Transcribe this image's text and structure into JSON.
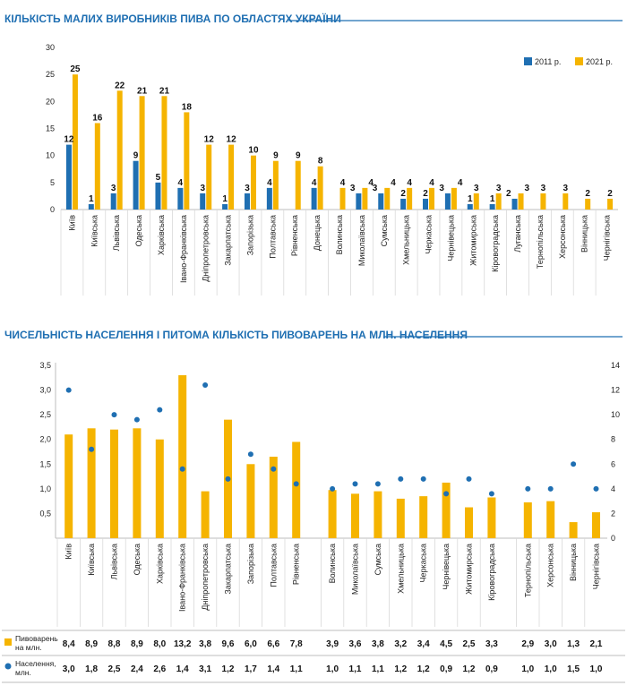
{
  "chart_data": [
    {
      "type": "bar",
      "title": "КІЛЬКІСТЬ МАЛИХ ВИРОБНИКІВ ПИВА ПО ОБЛАСТЯХ УКРАЇНИ",
      "ylim": [
        0,
        30
      ],
      "yticks": [
        0,
        5,
        10,
        15,
        20,
        25,
        30
      ],
      "legend_position": "top-right",
      "categories": [
        "Київ",
        "Київська",
        "Львівська",
        "Одеська",
        "Харківська",
        "Івано-Франківська",
        "Дніпропетровська",
        "Закарпатська",
        "Запорізька",
        "Полтавська",
        "Рівненська",
        "Донецька",
        "Волинська",
        "Миколаївська",
        "Сумська",
        "Хмельницька",
        "Черкаська",
        "Чернівецька",
        "Житомирська",
        "Кіровоградська",
        "Луганська",
        "Тернопільська",
        "Херсонська",
        "Вінницька",
        "Чернігівська"
      ],
      "series": [
        {
          "name": "2011 р.",
          "color": "#1f6fb2",
          "values": [
            12,
            1,
            3,
            9,
            5,
            4,
            3,
            1,
            3,
            4,
            null,
            4,
            null,
            3,
            3,
            2,
            2,
            3,
            1,
            1,
            2,
            null,
            null,
            null,
            null
          ]
        },
        {
          "name": "2021 р.",
          "color": "#f5b400",
          "values": [
            25,
            16,
            22,
            21,
            21,
            18,
            12,
            12,
            10,
            9,
            9,
            8,
            4,
            4,
            4,
            4,
            4,
            4,
            3,
            3,
            3,
            3,
            3,
            2,
            2
          ]
        }
      ]
    },
    {
      "type": "bar",
      "title": "ЧИСЕЛЬНІСТЬ НАСЕЛЕННЯ І ПИТОМА КІЛЬКІСТЬ ПИВОВАРЕНЬ НА МЛН. НАСЕЛЕННЯ",
      "ylim_left": [
        0,
        3.5
      ],
      "yticks_left": [
        "0",
        "0,5",
        "1,0",
        "1,5",
        "2,0",
        "2,5",
        "3,0",
        "3,5"
      ],
      "ylim_right": [
        0,
        14
      ],
      "yticks_right": [
        "0",
        "2",
        "4",
        "6",
        "8",
        "10",
        "12",
        "14"
      ],
      "categories": [
        "Київ",
        "Київська",
        "Львівська",
        "Одеська",
        "Харківська",
        "Івано-Франківська",
        "Дніпропетровська",
        "Закарпатська",
        "Запорізька",
        "Полтавська",
        "Рівненська",
        "Волинська",
        "Миколаївська",
        "Сумська",
        "Хмельницька",
        "Черкаська",
        "Чернівецька",
        "Житомирська",
        "Кіровоградська",
        "Тернопільська",
        "Херсонська",
        "Вінницька",
        "Чернігівська"
      ],
      "groups": [
        11,
        8,
        4
      ],
      "series": [
        {
          "name": "Пивоварень на млн.",
          "color": "#f5b400",
          "axis": "right",
          "values": [
            8.4,
            8.9,
            8.8,
            8.9,
            8.0,
            13.2,
            3.8,
            9.6,
            6.0,
            6.6,
            7.8,
            3.9,
            3.6,
            3.8,
            3.2,
            3.4,
            4.5,
            2.5,
            3.3,
            2.9,
            3.0,
            1.3,
            2.1
          ],
          "labels": [
            "8,4",
            "8,9",
            "8,8",
            "8,9",
            "8,0",
            "13,2",
            "3,8",
            "9,6",
            "6,0",
            "6,6",
            "7,8",
            "3,9",
            "3,6",
            "3,8",
            "3,2",
            "3,4",
            "4,5",
            "2,5",
            "3,3",
            "2,9",
            "3,0",
            "1,3",
            "2,1"
          ]
        },
        {
          "name": "Населення, млн.",
          "color": "#1f6fb2",
          "axis": "left",
          "values": [
            3.0,
            1.8,
            2.5,
            2.4,
            2.6,
            1.4,
            3.1,
            1.2,
            1.7,
            1.4,
            1.1,
            1.0,
            1.1,
            1.1,
            1.2,
            1.2,
            0.9,
            1.2,
            0.9,
            1.0,
            1.0,
            1.5,
            1.0
          ],
          "labels": [
            "3,0",
            "1,8",
            "2,5",
            "2,4",
            "2,6",
            "1,4",
            "3,1",
            "1,2",
            "1,7",
            "1,4",
            "1,1",
            "1,0",
            "1,1",
            "1,1",
            "1,2",
            "1,2",
            "0,9",
            "1,2",
            "0,9",
            "1,0",
            "1,0",
            "1,5",
            "1,0"
          ]
        }
      ],
      "table_rows": [
        {
          "label_lines": [
            "Пивоварень",
            "на млн."
          ]
        },
        {
          "label_lines": [
            "Населення,",
            "млн."
          ]
        }
      ]
    }
  ]
}
